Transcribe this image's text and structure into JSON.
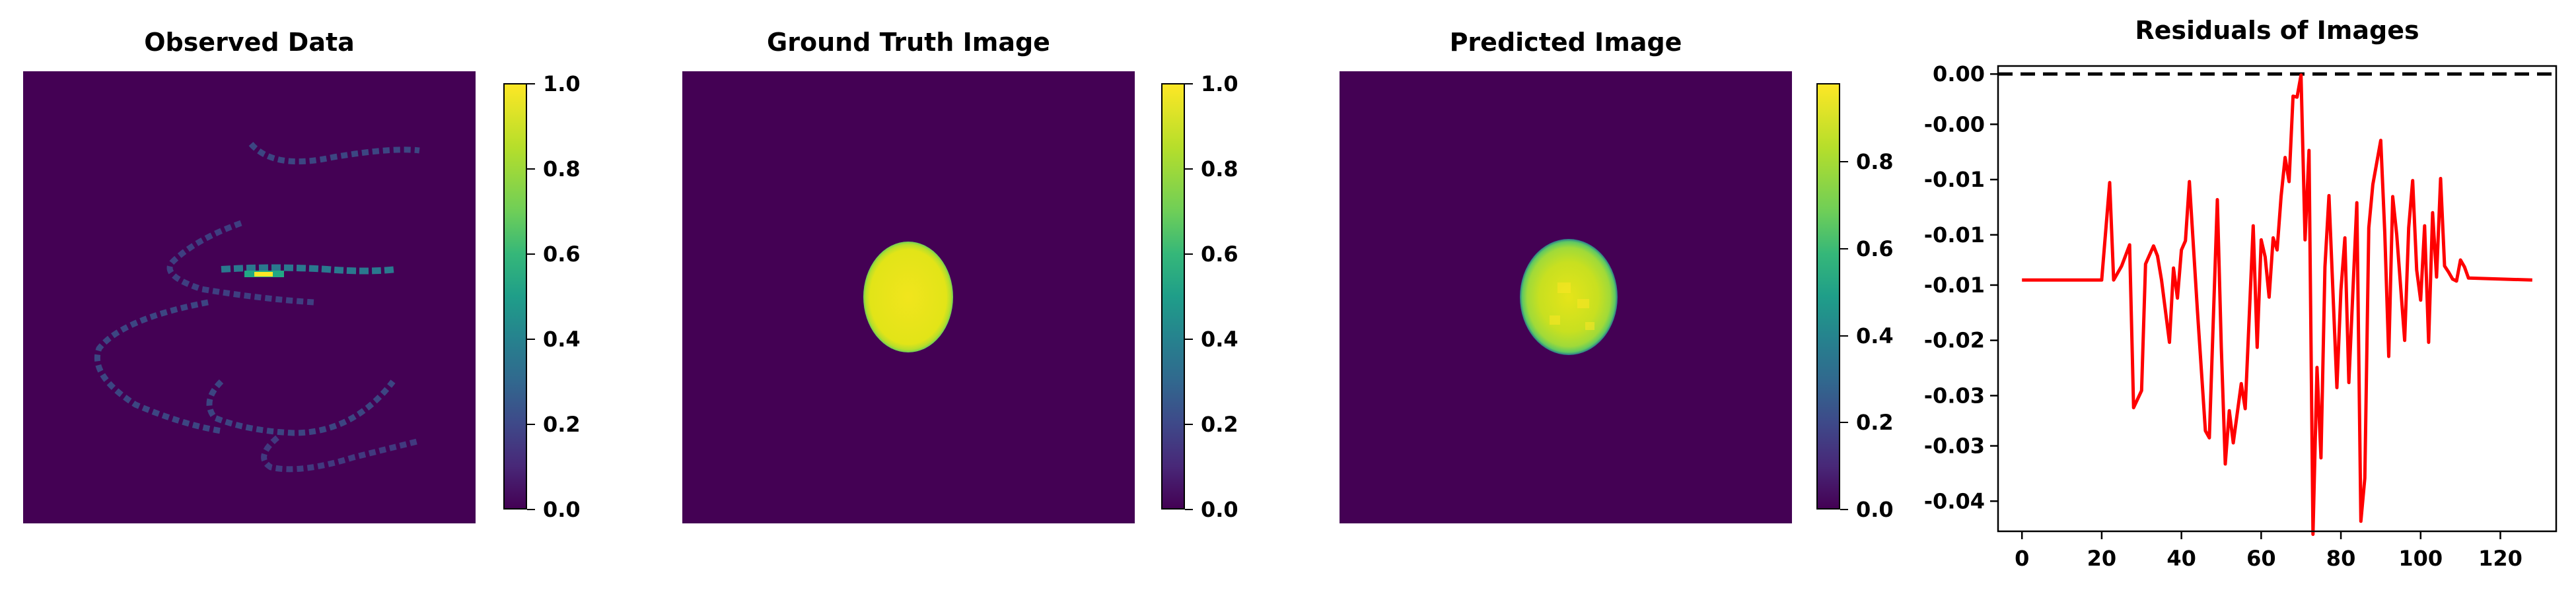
{
  "chart_data": [
    {
      "type": "heatmap",
      "title": "Observed Data",
      "colormap": "viridis",
      "colorbar": {
        "ticks": [
          "0.0",
          "0.2",
          "0.4",
          "0.6",
          "0.8",
          "1.0"
        ],
        "range": [
          0,
          1
        ]
      },
      "description_free": true
    },
    {
      "type": "heatmap",
      "title": "Ground Truth Image",
      "colormap": "viridis",
      "colorbar": {
        "ticks": [
          "0.0",
          "0.2",
          "0.4",
          "0.6",
          "0.8",
          "1.0"
        ],
        "range": [
          0,
          1
        ]
      }
    },
    {
      "type": "heatmap",
      "title": "Predicted Image",
      "colormap": "viridis",
      "colorbar": {
        "ticks": [
          "0.0",
          "0.2",
          "0.4",
          "0.6",
          "0.8"
        ],
        "range": [
          0,
          0.98
        ]
      }
    },
    {
      "type": "line",
      "title": "Residuals of Images",
      "xlabel": "",
      "ylabel": "",
      "xlim": [
        -6,
        134
      ],
      "ylim": [
        -0.0455,
        0.0008
      ],
      "x_ticks": [
        "0",
        "20",
        "40",
        "60",
        "80",
        "100",
        "120"
      ],
      "y_ticks": [
        "0.00",
        "-0.00",
        "-0.01",
        "-0.01",
        "-0.01",
        "-0.02",
        "-0.03",
        "-0.03",
        "-0.04"
      ],
      "y_tick_values": [
        0.0,
        -0.005,
        -0.0105,
        -0.016,
        -0.021,
        -0.0265,
        -0.032,
        -0.037,
        -0.0425
      ],
      "reference_line": {
        "y": 0.0,
        "style": "dashed",
        "color": "#000000"
      },
      "series": [
        {
          "color": "#ff0000",
          "x": [
            0,
            20,
            22,
            23,
            25,
            27,
            28,
            30,
            31,
            33,
            34,
            35,
            37,
            38,
            39,
            40,
            41,
            42,
            44,
            46,
            47,
            49,
            50,
            51,
            52,
            53,
            55,
            56,
            58,
            59,
            60,
            61,
            62,
            63,
            64,
            65,
            66,
            67,
            68,
            69,
            70,
            71,
            72,
            73,
            74,
            75,
            76,
            77,
            79,
            80,
            81,
            82,
            84,
            85,
            86,
            87,
            88,
            90,
            91,
            92,
            93,
            94,
            96,
            97,
            98,
            99,
            100,
            101,
            102,
            103,
            104,
            105,
            106,
            107,
            108,
            109,
            110,
            111,
            112,
            128
          ],
          "y": [
            -0.0205,
            -0.0205,
            -0.0108,
            -0.0205,
            -0.0191,
            -0.017,
            -0.0332,
            -0.0315,
            -0.0189,
            -0.0171,
            -0.0181,
            -0.0205,
            -0.0267,
            -0.0193,
            -0.0223,
            -0.0175,
            -0.0166,
            -0.0107,
            -0.0235,
            -0.0355,
            -0.0362,
            -0.0125,
            -0.0272,
            -0.0388,
            -0.0335,
            -0.0367,
            -0.0308,
            -0.0333,
            -0.0151,
            -0.0272,
            -0.0165,
            -0.0182,
            -0.0222,
            -0.0163,
            -0.0175,
            -0.0122,
            -0.0083,
            -0.0107,
            -0.0022,
            -0.0023,
            -0.0001,
            -0.0165,
            -0.0076,
            -0.0458,
            -0.0292,
            -0.0382,
            -0.0192,
            -0.0121,
            -0.0312,
            -0.0215,
            -0.0163,
            -0.0307,
            -0.0128,
            -0.0445,
            -0.0402,
            -0.0153,
            -0.011,
            -0.0066,
            -0.0158,
            -0.0281,
            -0.0122,
            -0.016,
            -0.0265,
            -0.0153,
            -0.0106,
            -0.0195,
            -0.0225,
            -0.0151,
            -0.0267,
            -0.0138,
            -0.0202,
            -0.0104,
            -0.0191,
            -0.0197,
            -0.0204,
            -0.0206,
            -0.0185,
            -0.0192,
            -0.0203,
            -0.0205
          ]
        }
      ]
    }
  ]
}
